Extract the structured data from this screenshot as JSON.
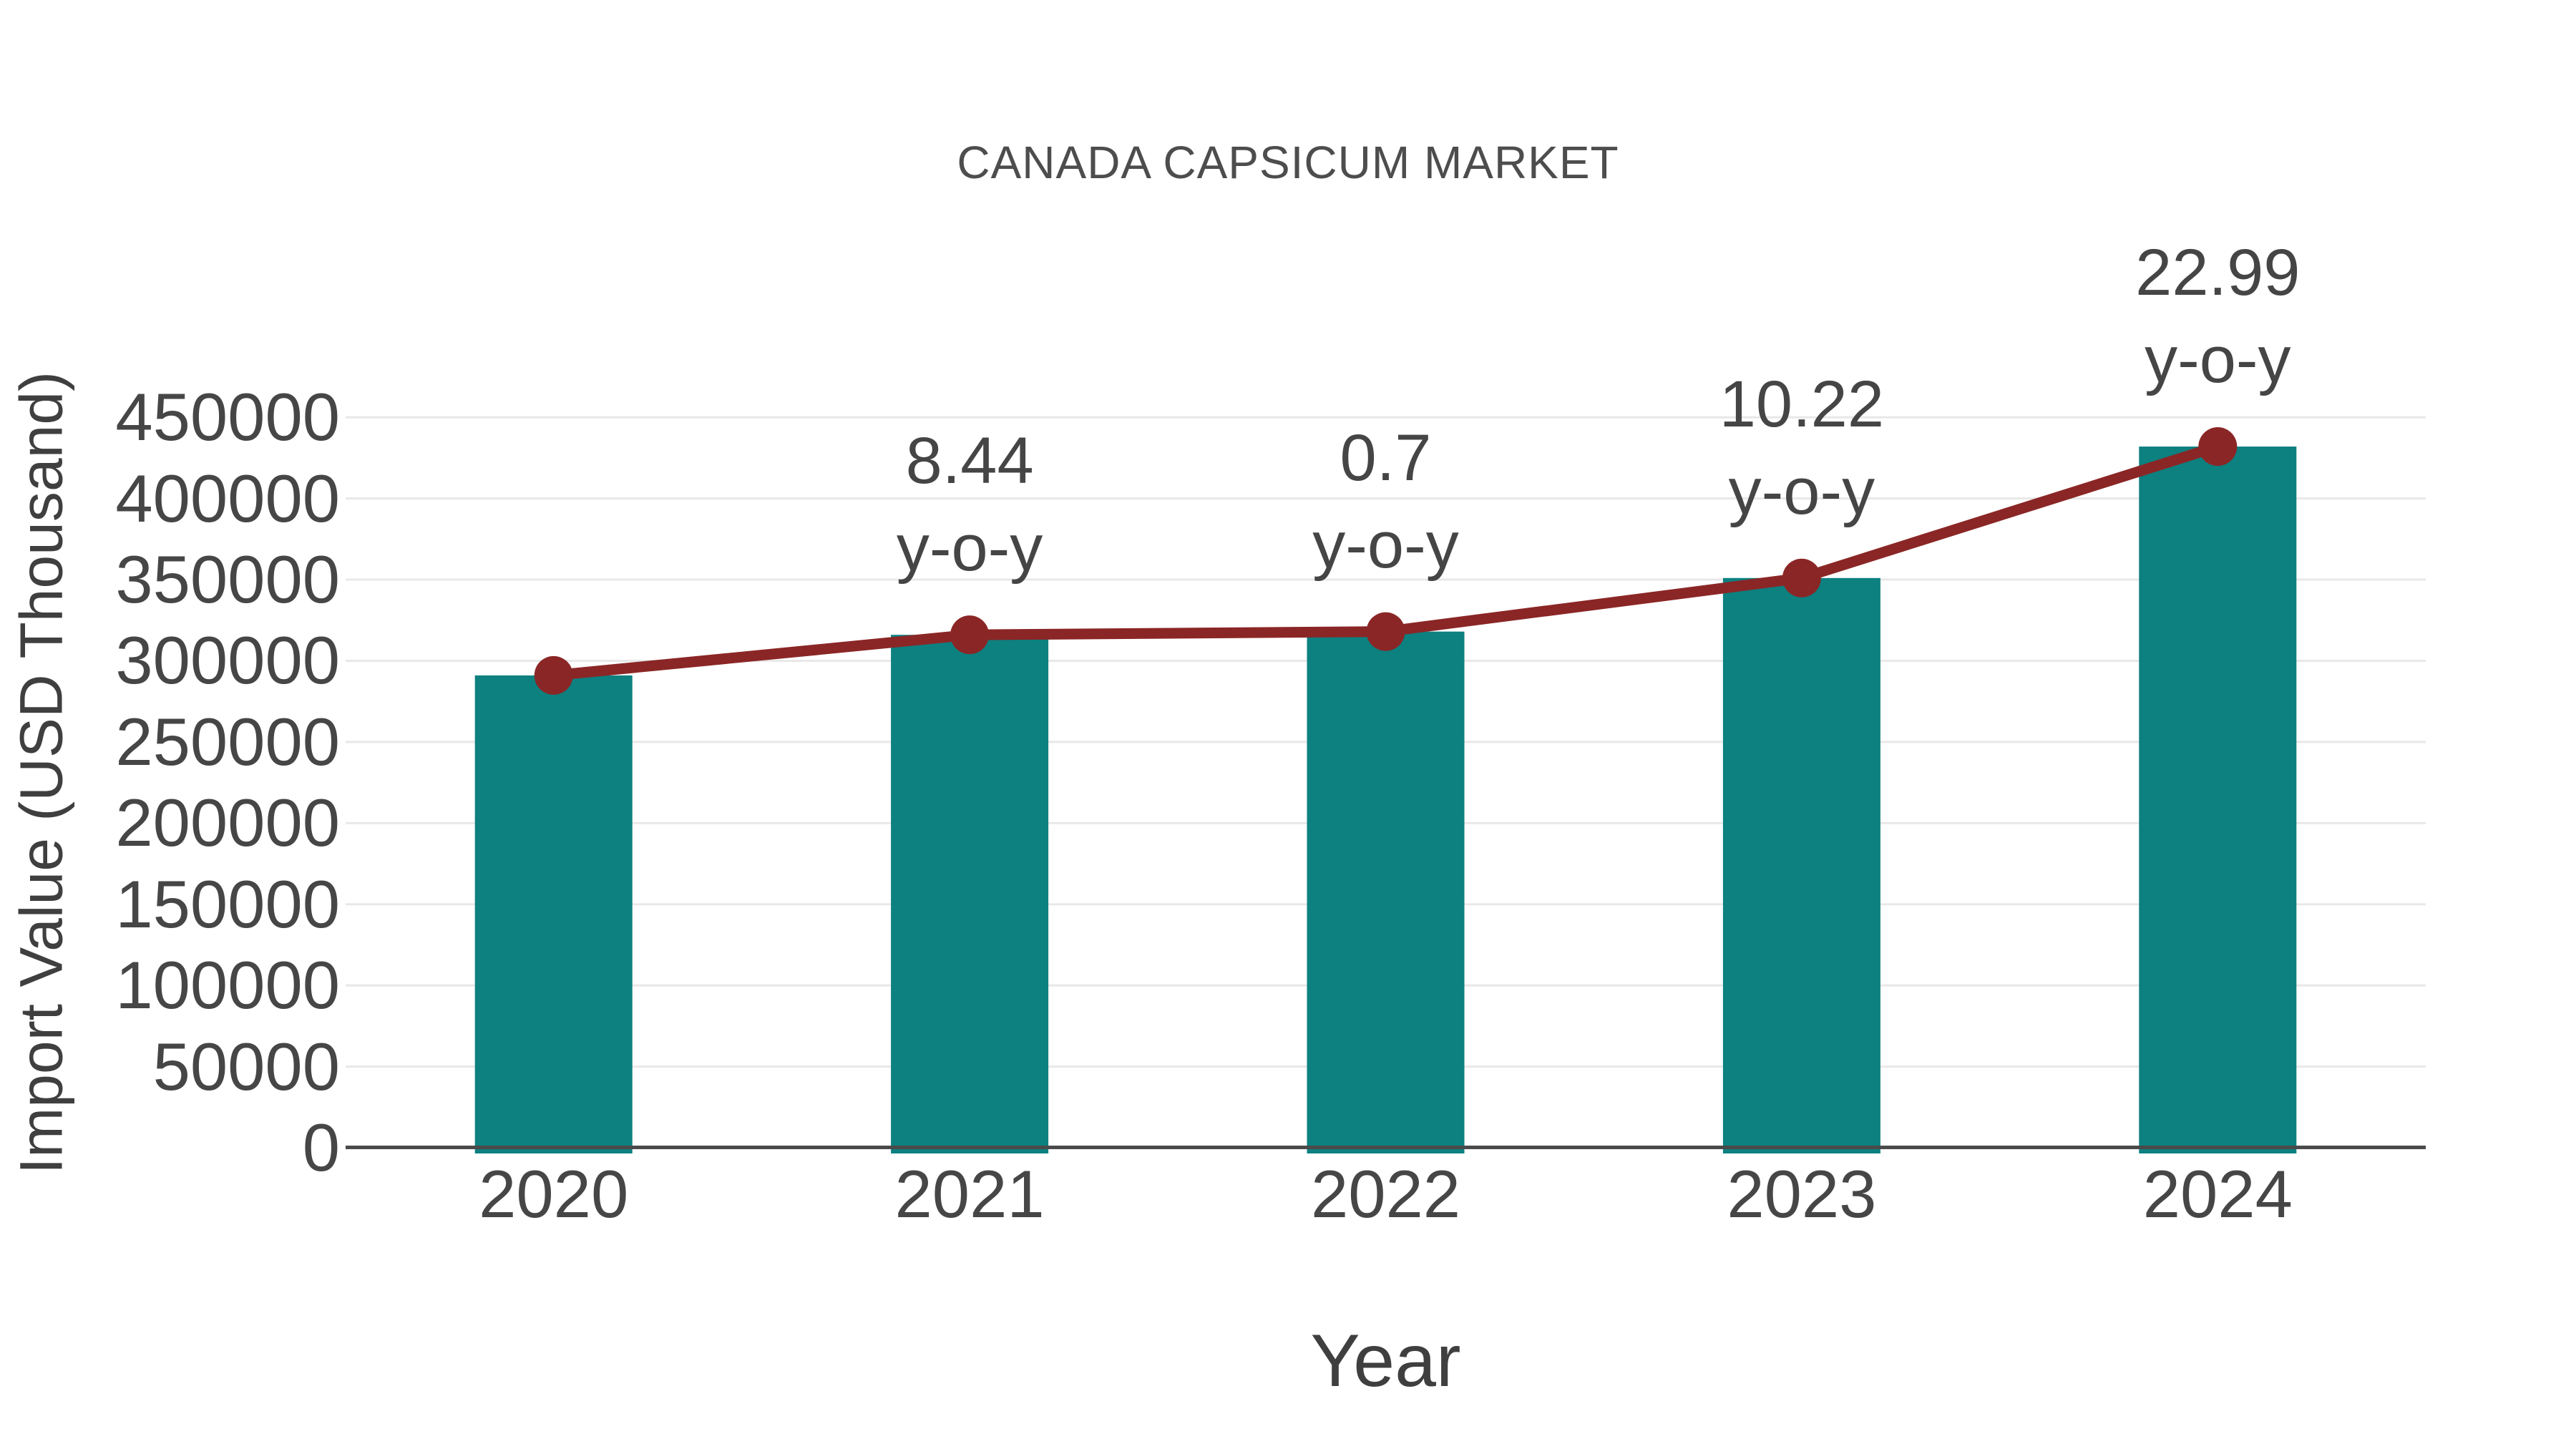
{
  "chart_data": {
    "type": "bar",
    "title": "CANADA CAPSICUM MARKET",
    "xlabel": "Year",
    "ylabel": "Import Value (USD Thousand)",
    "categories": [
      "2020",
      "2021",
      "2022",
      "2023",
      "2024"
    ],
    "series": [
      {
        "name": "Import Value (USD Thousand)",
        "type": "bar",
        "color": "#0d8080",
        "values": [
          291000,
          316000,
          318000,
          351000,
          432000
        ]
      },
      {
        "name": "Import Value trend",
        "type": "line",
        "color": "#8b2626",
        "values": [
          291000,
          316000,
          318000,
          351000,
          432000
        ]
      }
    ],
    "annotations": [
      {
        "category": "2021",
        "line1": "8.44",
        "line2": "y-o-y"
      },
      {
        "category": "2022",
        "line1": "0.7",
        "line2": "y-o-y"
      },
      {
        "category": "2023",
        "line1": "10.22",
        "line2": "y-o-y"
      },
      {
        "category": "2024",
        "line1": "22.99",
        "line2": "y-o-y"
      }
    ],
    "yoy_percent": {
      "2021": 8.44,
      "2022": 0.7,
      "2023": 10.22,
      "2024": 22.99
    },
    "ylim": [
      0,
      462000
    ],
    "yticks": [
      0,
      50000,
      100000,
      150000,
      200000,
      250000,
      300000,
      350000,
      400000,
      450000
    ],
    "grid": true,
    "legend": false,
    "colors": {
      "bar": "#0d8080",
      "line": "#8b2626",
      "marker": "#8b2626",
      "grid": "#e8e8e8",
      "axis": "#4a4a4a",
      "text": "#464646",
      "title": "#4d4d4d"
    }
  }
}
